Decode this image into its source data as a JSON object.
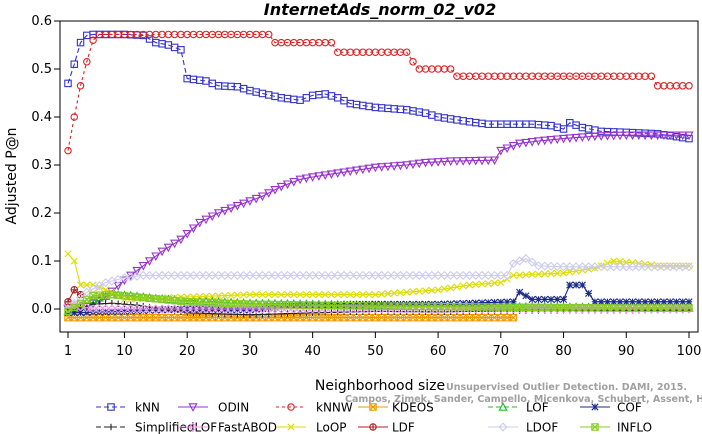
{
  "chart_data": {
    "type": "line",
    "title": "InternetAds_norm_02_v02",
    "xlabel": "Neighborhood size",
    "ylabel": "Adjusted P@n",
    "xlim": [
      1,
      100
    ],
    "ylim": [
      -0.03,
      0.6
    ],
    "x_ticks": [
      1,
      10,
      20,
      30,
      40,
      50,
      60,
      70,
      80,
      90,
      100
    ],
    "y_ticks": [
      0.0,
      0.1,
      0.2,
      0.3,
      0.4,
      0.5,
      0.6
    ],
    "y_tick_labels": [
      "0.0",
      "0.1",
      "0.2",
      "0.3",
      "0.4",
      "0.5",
      "0.6"
    ],
    "legend_position": "bottom",
    "grid": false,
    "watermark": {
      "line1": "Unsupervised Outlier Detection. DAMI, 2015.",
      "line2": "Campos, Zimek, Sander, Campello, Micenkova, Schubert, Assent, Houle"
    },
    "series": [
      {
        "name": "kNN",
        "color": "#3333cc",
        "marker": "square",
        "dash": "5,3",
        "points": [
          [
            1,
            0.47
          ],
          [
            2,
            0.51
          ],
          [
            3,
            0.555
          ],
          [
            4,
            0.57
          ],
          [
            5,
            0.572
          ],
          [
            10,
            0.572
          ],
          [
            13,
            0.57
          ],
          [
            15,
            0.555
          ],
          [
            17,
            0.55
          ],
          [
            19,
            0.54
          ],
          [
            20,
            0.48
          ],
          [
            23,
            0.475
          ],
          [
            25,
            0.465
          ],
          [
            28,
            0.463
          ],
          [
            30,
            0.455
          ],
          [
            35,
            0.44
          ],
          [
            38,
            0.435
          ],
          [
            40,
            0.445
          ],
          [
            42,
            0.448
          ],
          [
            44,
            0.44
          ],
          [
            46,
            0.428
          ],
          [
            50,
            0.42
          ],
          [
            55,
            0.415
          ],
          [
            58,
            0.408
          ],
          [
            60,
            0.4
          ],
          [
            65,
            0.39
          ],
          [
            68,
            0.385
          ],
          [
            75,
            0.385
          ],
          [
            78,
            0.382
          ],
          [
            80,
            0.375
          ],
          [
            81,
            0.388
          ],
          [
            83,
            0.378
          ],
          [
            86,
            0.37
          ],
          [
            90,
            0.368
          ],
          [
            95,
            0.365
          ],
          [
            100,
            0.355
          ]
        ]
      },
      {
        "name": "ODIN",
        "color": "#9933cc",
        "marker": "triangle-down",
        "dash": "",
        "points": [
          [
            1,
            0.0
          ],
          [
            4,
            0.005
          ],
          [
            7,
            0.025
          ],
          [
            10,
            0.06
          ],
          [
            13,
            0.09
          ],
          [
            16,
            0.12
          ],
          [
            19,
            0.145
          ],
          [
            22,
            0.18
          ],
          [
            25,
            0.2
          ],
          [
            28,
            0.215
          ],
          [
            32,
            0.235
          ],
          [
            35,
            0.255
          ],
          [
            38,
            0.27
          ],
          [
            40,
            0.275
          ],
          [
            45,
            0.285
          ],
          [
            50,
            0.295
          ],
          [
            55,
            0.3
          ],
          [
            58,
            0.305
          ],
          [
            62,
            0.308
          ],
          [
            69,
            0.31
          ],
          [
            70,
            0.33
          ],
          [
            73,
            0.345
          ],
          [
            76,
            0.35
          ],
          [
            80,
            0.355
          ],
          [
            85,
            0.36
          ],
          [
            90,
            0.362
          ],
          [
            100,
            0.362
          ]
        ]
      },
      {
        "name": "kNNW",
        "color": "#dd2222",
        "marker": "circle",
        "dash": "3,3",
        "points": [
          [
            1,
            0.33
          ],
          [
            2,
            0.4
          ],
          [
            3,
            0.465
          ],
          [
            4,
            0.515
          ],
          [
            5,
            0.56
          ],
          [
            6,
            0.572
          ],
          [
            33,
            0.572
          ],
          [
            34,
            0.555
          ],
          [
            43,
            0.555
          ],
          [
            44,
            0.535
          ],
          [
            55,
            0.535
          ],
          [
            56,
            0.515
          ],
          [
            57,
            0.5
          ],
          [
            62,
            0.5
          ],
          [
            63,
            0.485
          ],
          [
            94,
            0.485
          ],
          [
            95,
            0.465
          ],
          [
            100,
            0.465
          ]
        ]
      },
      {
        "name": "KDEOS",
        "color": "#ee9900",
        "marker": "square-x",
        "dash": "",
        "points": [
          [
            1,
            -0.018
          ],
          [
            70,
            -0.018
          ],
          [
            72,
            -0.018
          ]
        ]
      },
      {
        "name": "LOF",
        "color": "#22bb22",
        "marker": "triangle-up",
        "dash": "5,3",
        "points": [
          [
            1,
            -0.005
          ],
          [
            5,
            0.02
          ],
          [
            8,
            0.03
          ],
          [
            11,
            0.028
          ],
          [
            15,
            0.022
          ],
          [
            20,
            0.018
          ],
          [
            30,
            0.012
          ],
          [
            40,
            0.01
          ],
          [
            50,
            0.008
          ],
          [
            60,
            0.006
          ],
          [
            70,
            0.005
          ],
          [
            80,
            0.004
          ],
          [
            90,
            0.003
          ],
          [
            100,
            0.002
          ]
        ]
      },
      {
        "name": "COF",
        "color": "#1a2a88",
        "marker": "star",
        "dash": "",
        "points": [
          [
            1,
            -0.008
          ],
          [
            10,
            -0.005
          ],
          [
            20,
            0.0
          ],
          [
            30,
            -0.002
          ],
          [
            35,
            0.005
          ],
          [
            40,
            0.008
          ],
          [
            50,
            0.01
          ],
          [
            60,
            0.01
          ],
          [
            72,
            0.015
          ],
          [
            73,
            0.035
          ],
          [
            75,
            0.02
          ],
          [
            80,
            0.02
          ],
          [
            81,
            0.05
          ],
          [
            83,
            0.05
          ],
          [
            85,
            0.015
          ],
          [
            90,
            0.015
          ],
          [
            100,
            0.015
          ]
        ]
      },
      {
        "name": "SimplifiedLOF",
        "color": "#222222",
        "marker": "plus",
        "dash": "5,3",
        "points": [
          [
            1,
            -0.005
          ],
          [
            5,
            0.01
          ],
          [
            8,
            0.012
          ],
          [
            12,
            0.008
          ],
          [
            20,
            -0.008
          ],
          [
            30,
            -0.012
          ],
          [
            40,
            -0.008
          ],
          [
            50,
            -0.005
          ],
          [
            60,
            -0.006
          ],
          [
            70,
            -0.004
          ],
          [
            80,
            -0.003
          ],
          [
            90,
            -0.003
          ],
          [
            100,
            -0.002
          ]
        ]
      },
      {
        "name": "FastABOD",
        "color": "#ee99ee",
        "marker": "diamond",
        "dash": "",
        "points": [
          [
            1,
            0.01
          ],
          [
            5,
            0.0
          ],
          [
            10,
            0.0
          ],
          [
            20,
            0.0
          ],
          [
            50,
            0.0
          ],
          [
            100,
            0.0
          ]
        ]
      },
      {
        "name": "LoOP",
        "color": "#dddd00",
        "marker": "x",
        "dash": "",
        "points": [
          [
            1,
            0.115
          ],
          [
            2,
            0.1
          ],
          [
            3,
            0.05
          ],
          [
            5,
            0.05
          ],
          [
            8,
            0.035
          ],
          [
            10,
            0.02
          ],
          [
            20,
            0.025
          ],
          [
            30,
            0.03
          ],
          [
            40,
            0.03
          ],
          [
            50,
            0.03
          ],
          [
            60,
            0.04
          ],
          [
            65,
            0.05
          ],
          [
            70,
            0.055
          ],
          [
            72,
            0.07
          ],
          [
            80,
            0.075
          ],
          [
            85,
            0.085
          ],
          [
            88,
            0.1
          ],
          [
            92,
            0.095
          ],
          [
            95,
            0.09
          ],
          [
            100,
            0.09
          ]
        ]
      },
      {
        "name": "LDF",
        "color": "#aa2222",
        "marker": "circle-plus",
        "dash": "",
        "points": [
          [
            1,
            0.015
          ],
          [
            2,
            0.04
          ],
          [
            3,
            0.03
          ]
        ]
      },
      {
        "name": "LDOF",
        "color": "#ccccee",
        "marker": "diamond",
        "dash": "",
        "points": [
          [
            1,
            0.0
          ],
          [
            4,
            0.035
          ],
          [
            7,
            0.055
          ],
          [
            10,
            0.065
          ],
          [
            13,
            0.07
          ],
          [
            71,
            0.07
          ],
          [
            72,
            0.095
          ],
          [
            74,
            0.105
          ],
          [
            76,
            0.09
          ],
          [
            80,
            0.088
          ],
          [
            100,
            0.088
          ]
        ]
      },
      {
        "name": "INFLO",
        "color": "#88cc22",
        "marker": "square-x",
        "dash": "",
        "points": [
          [
            1,
            -0.005
          ],
          [
            5,
            0.028
          ],
          [
            8,
            0.03
          ],
          [
            12,
            0.025
          ],
          [
            20,
            0.015
          ],
          [
            30,
            0.01
          ],
          [
            40,
            0.008
          ],
          [
            50,
            0.006
          ],
          [
            60,
            0.005
          ],
          [
            70,
            0.004
          ],
          [
            80,
            0.003
          ],
          [
            90,
            0.002
          ],
          [
            100,
            0.002
          ]
        ]
      }
    ]
  }
}
